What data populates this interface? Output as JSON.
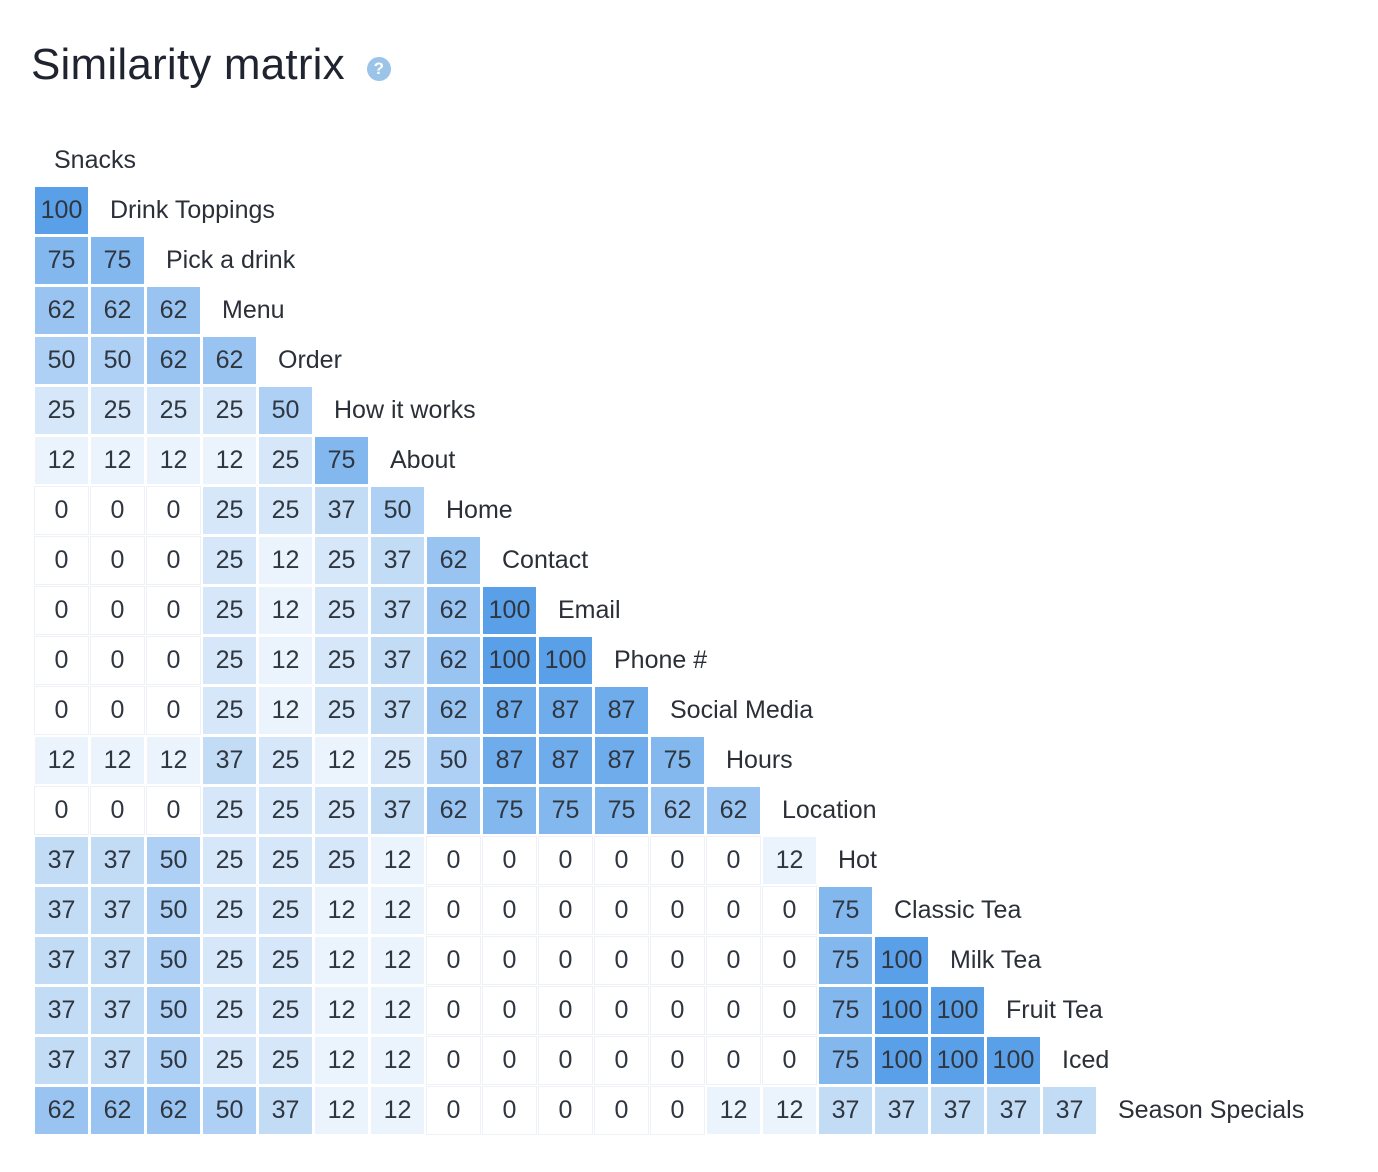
{
  "header": {
    "title": "Similarity matrix",
    "help_icon": "question-circle-icon",
    "help_glyph": "?"
  },
  "chart_data": {
    "type": "heatmap",
    "title": "Similarity matrix",
    "layout": "lower-triangular",
    "color_scale": {
      "min_color": "#ffffff",
      "max_color": "#5aa0e8",
      "min": 0,
      "max": 100
    },
    "labels": [
      "Snacks",
      "Drink Toppings",
      "Pick a drink",
      "Menu",
      "Order",
      "How it works",
      "About",
      "Home",
      "Contact",
      "Email",
      "Phone #",
      "Social Media",
      "Hours",
      "Location",
      "Hot",
      "Classic Tea",
      "Milk Tea",
      "Fruit Tea",
      "Iced",
      "Season Specials"
    ],
    "rows": [
      [],
      [
        100
      ],
      [
        75,
        75
      ],
      [
        62,
        62,
        62
      ],
      [
        50,
        50,
        62,
        62
      ],
      [
        25,
        25,
        25,
        25,
        50
      ],
      [
        12,
        12,
        12,
        12,
        25,
        75
      ],
      [
        0,
        0,
        0,
        25,
        25,
        37,
        50
      ],
      [
        0,
        0,
        0,
        25,
        12,
        25,
        37,
        62
      ],
      [
        0,
        0,
        0,
        25,
        12,
        25,
        37,
        62,
        100
      ],
      [
        0,
        0,
        0,
        25,
        12,
        25,
        37,
        62,
        100,
        100
      ],
      [
        0,
        0,
        0,
        25,
        12,
        25,
        37,
        62,
        87,
        87,
        87
      ],
      [
        12,
        12,
        12,
        37,
        25,
        12,
        25,
        50,
        87,
        87,
        87,
        75
      ],
      [
        0,
        0,
        0,
        25,
        25,
        25,
        37,
        62,
        75,
        75,
        75,
        62,
        62
      ],
      [
        37,
        37,
        50,
        25,
        25,
        25,
        12,
        0,
        0,
        0,
        0,
        0,
        0,
        12
      ],
      [
        37,
        37,
        50,
        25,
        25,
        12,
        12,
        0,
        0,
        0,
        0,
        0,
        0,
        0,
        75
      ],
      [
        37,
        37,
        50,
        25,
        25,
        12,
        12,
        0,
        0,
        0,
        0,
        0,
        0,
        0,
        75,
        100
      ],
      [
        37,
        37,
        50,
        25,
        25,
        12,
        12,
        0,
        0,
        0,
        0,
        0,
        0,
        0,
        75,
        100,
        100
      ],
      [
        37,
        37,
        50,
        25,
        25,
        12,
        12,
        0,
        0,
        0,
        0,
        0,
        0,
        0,
        75,
        100,
        100,
        100
      ],
      [
        62,
        62,
        62,
        50,
        37,
        12,
        12,
        0,
        0,
        0,
        0,
        0,
        12,
        12,
        37,
        37,
        37,
        37,
        37
      ]
    ]
  }
}
